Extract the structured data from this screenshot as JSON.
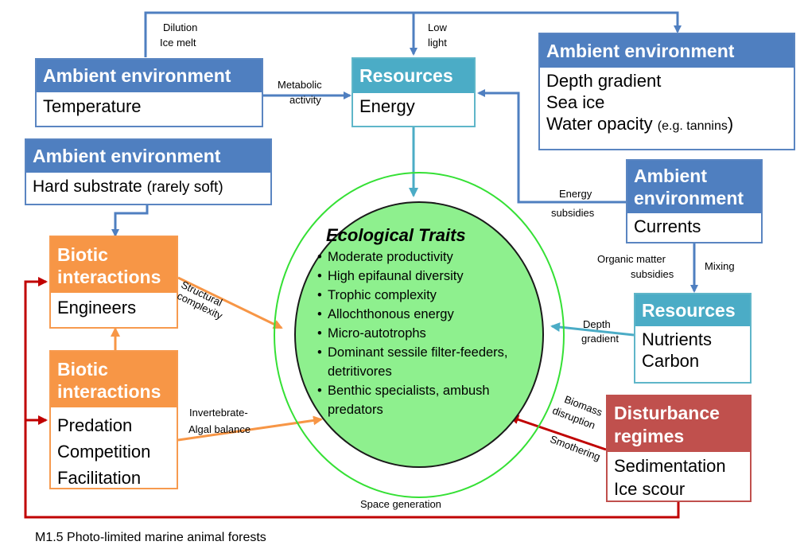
{
  "ambient_top_left": {
    "header": "Ambient environment",
    "lines": [
      "Temperature"
    ]
  },
  "ambient_top_right": {
    "header": "Ambient environment",
    "lines": [
      "Depth gradient",
      "Sea ice"
    ],
    "opacity_main": "Water opacity ",
    "opacity_note": "(e.g. tannins",
    "opacity_close": ")"
  },
  "ambient_substrate": {
    "header": "Ambient environment",
    "main": "Hard substrate ",
    "note": "(rarely soft)"
  },
  "ambient_currents": {
    "header_lines": [
      "Ambient",
      "environment"
    ],
    "lines": [
      "Currents"
    ]
  },
  "resources_energy": {
    "header": "Resources",
    "lines": [
      "Energy"
    ]
  },
  "resources_nutrients": {
    "header": "Resources",
    "lines": [
      "Nutrients",
      "Carbon"
    ]
  },
  "biotic_engineers": {
    "header_lines": [
      "Biotic",
      "interactions"
    ],
    "lines": [
      "Engineers"
    ]
  },
  "biotic_predation": {
    "header_lines": [
      "Biotic",
      "interactions"
    ],
    "lines": [
      "Predation",
      "Competition",
      "Facilitation"
    ]
  },
  "disturbance": {
    "header_lines": [
      "Disturbance",
      "regimes"
    ],
    "lines": [
      "Sedimentation",
      "Ice scour"
    ]
  },
  "traits": {
    "title": "Ecological Traits",
    "items": [
      "Moderate productivity",
      "High epifaunal diversity",
      "Trophic complexity",
      "Allochthonous energy",
      "Micro-autotrophs",
      "Dominant sessile filter-feeders, detritivores",
      "Benthic specialists, ambush predators"
    ]
  },
  "labels": {
    "dilution": "Dilution",
    "ice_melt": "Ice melt",
    "low": "Low",
    "light": "light",
    "metabolic": "Metabolic",
    "activity": "activity",
    "energy": "Energy",
    "subsidies": "subsidies",
    "organic_matter": "Organic matter",
    "subsidies2": "subsidies",
    "mixing": "Mixing",
    "depth": "Depth",
    "gradient": "gradient",
    "structural": "Structural",
    "complexity": "complexity",
    "invertebrate": "Invertebrate-",
    "algal_balance": "Algal balance",
    "biomass": "Biomass",
    "disruption": "disruption",
    "smothering": "Smothering",
    "space_generation": "Space generation"
  },
  "caption": "M1.5 Photo-limited marine animal forests",
  "colors": {
    "ambient": "#4f7fc0",
    "resources": "#4bacc6",
    "biotic": "#f79646",
    "disturbance": "#c0504d",
    "circle_fill": "#8ef08e",
    "circle_ring": "#35e035",
    "feedback": "#c00000"
  }
}
